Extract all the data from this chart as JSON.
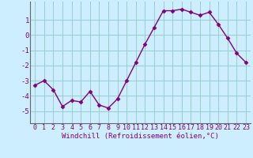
{
  "x": [
    0,
    1,
    2,
    3,
    4,
    5,
    6,
    7,
    8,
    9,
    10,
    11,
    12,
    13,
    14,
    15,
    16,
    17,
    18,
    19,
    20,
    21,
    22,
    23
  ],
  "y": [
    -3.3,
    -3.0,
    -3.6,
    -4.7,
    -4.3,
    -4.4,
    -3.7,
    -4.6,
    -4.8,
    -4.2,
    -3.0,
    -1.8,
    -0.6,
    0.5,
    1.6,
    1.6,
    1.7,
    1.5,
    1.3,
    1.5,
    0.7,
    -0.2,
    -1.2,
    -1.8
  ],
  "xlim": [
    -0.5,
    23.5
  ],
  "ylim": [
    -5.8,
    2.2
  ],
  "yticks": [
    -5,
    -4,
    -3,
    -2,
    -1,
    0,
    1
  ],
  "xticks": [
    0,
    1,
    2,
    3,
    4,
    5,
    6,
    7,
    8,
    9,
    10,
    11,
    12,
    13,
    14,
    15,
    16,
    17,
    18,
    19,
    20,
    21,
    22,
    23
  ],
  "xlabel": "Windchill (Refroidissement éolien,°C)",
  "line_color": "#800080",
  "marker": "D",
  "marker_size": 2.5,
  "line_width": 1.0,
  "bg_color": "#cceeff",
  "grid_color": "#99cccc",
  "tick_color": "#800080",
  "label_color": "#800080",
  "xlabel_fontsize": 6.5,
  "tick_fontsize": 6.0,
  "ytick_fontsize": 6.5
}
